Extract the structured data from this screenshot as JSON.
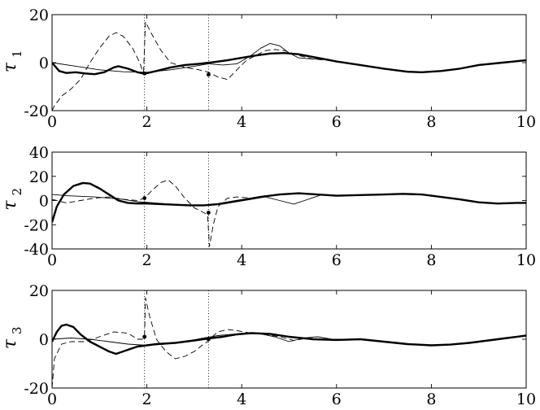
{
  "chart_data": [
    {
      "type": "line",
      "ylabel": "τ",
      "ylabel_sub": "1",
      "xlim": [
        0,
        10
      ],
      "ylim": [
        -20,
        20
      ],
      "xticks": [
        0,
        2,
        4,
        6,
        8,
        10
      ],
      "yticks": [
        -20,
        0,
        20
      ],
      "vlines": [
        1.95,
        3.3
      ],
      "grid": false,
      "markers": [
        {
          "x": 1.95,
          "y": -4.5
        },
        {
          "x": 3.3,
          "y": -5
        }
      ],
      "series": [
        {
          "style": "thick",
          "x": [
            0,
            0.15,
            0.3,
            0.5,
            0.7,
            0.9,
            1.1,
            1.3,
            1.4,
            1.6,
            1.8,
            1.95,
            2.2,
            2.5,
            2.8,
            3.1,
            3.4,
            3.7,
            4.0,
            4.3,
            4.6,
            4.9,
            5.2,
            5.6,
            6.0,
            6.5,
            7.0,
            7.5,
            7.8,
            8.2,
            8.6,
            9.0,
            9.5,
            10.0
          ],
          "y": [
            0,
            -3.5,
            -4.3,
            -4,
            -4.5,
            -4.8,
            -4,
            -2,
            -1.5,
            -2.5,
            -4,
            -4.6,
            -3.5,
            -2,
            -1,
            -0.5,
            0.2,
            1,
            2,
            3,
            3.8,
            4,
            3.5,
            2,
            0.5,
            -1,
            -2.5,
            -3.8,
            -4,
            -3.5,
            -2.5,
            -1,
            0,
            1
          ]
        },
        {
          "style": "thin",
          "x": [
            0,
            0.5,
            1.0,
            1.5,
            2.0,
            2.5,
            3.0,
            3.3,
            3.6,
            3.9,
            4.2,
            4.4,
            4.6,
            4.8,
            5.0,
            5.2,
            5.5,
            5.8,
            6.0,
            6.5,
            7.0,
            7.5,
            7.8,
            8.2,
            8.6,
            9.0,
            9.5,
            10.0
          ],
          "y": [
            0,
            -1.5,
            -3,
            -3.8,
            -4,
            -3,
            -1.5,
            -0.5,
            -1,
            -0.5,
            3,
            6,
            8,
            7,
            4,
            2,
            1.5,
            1.5,
            0.5,
            -1,
            -2.5,
            -3.8,
            -4,
            -3.5,
            -2.5,
            -1,
            0,
            1
          ]
        },
        {
          "style": "dashed",
          "x": [
            0,
            0.05,
            0.2,
            0.4,
            0.6,
            0.8,
            1.0,
            1.2,
            1.35,
            1.5,
            1.7,
            1.85,
            1.9,
            1.93,
            1.97,
            2.1,
            2.3,
            2.5,
            2.8,
            3.1,
            3.3,
            3.5,
            3.7,
            3.9,
            4.1,
            4.3,
            4.5,
            4.7,
            4.9,
            5.2,
            5.5,
            5.8,
            6.0,
            6.5,
            7.0,
            7.5,
            7.8,
            8.2,
            8.6,
            9.0,
            9.5,
            10.0
          ],
          "y": [
            -20,
            -18,
            -14,
            -11,
            -7,
            0,
            6,
            11,
            12.5,
            11,
            6,
            0,
            -3,
            -4,
            17,
            12,
            5,
            0,
            -2,
            -3,
            -4,
            -6,
            -7,
            -3,
            1,
            3,
            5,
            5.5,
            5,
            3,
            1.5,
            1,
            0.5,
            -1,
            -2.5,
            -3.8,
            -4,
            -3.5,
            -2.5,
            -1,
            0,
            1
          ]
        }
      ]
    },
    {
      "type": "line",
      "ylabel": "τ",
      "ylabel_sub": "2",
      "xlim": [
        0,
        10
      ],
      "ylim": [
        -40,
        40
      ],
      "xticks": [
        0,
        2,
        4,
        6,
        8,
        10
      ],
      "yticks": [
        -40,
        -20,
        0,
        20,
        40
      ],
      "vlines": [
        1.95,
        3.3
      ],
      "grid": false,
      "markers": [
        {
          "x": 1.95,
          "y": 2
        },
        {
          "x": 3.3,
          "y": -10
        }
      ],
      "series": [
        {
          "style": "thick",
          "x": [
            0,
            0.1,
            0.25,
            0.45,
            0.65,
            0.8,
            1.0,
            1.2,
            1.4,
            1.6,
            1.8,
            2.0,
            2.3,
            2.6,
            2.9,
            3.2,
            3.5,
            3.8,
            4.1,
            4.4,
            4.8,
            5.2,
            5.6,
            6.0,
            6.5,
            7.0,
            7.4,
            7.8,
            8.2,
            8.6,
            9.0,
            9.4,
            9.8,
            10.0
          ],
          "y": [
            -18,
            -5,
            5,
            12,
            14.5,
            14,
            10,
            5,
            0,
            -2,
            -2.5,
            -2.5,
            -3,
            -3.5,
            -4,
            -4,
            -3,
            -1,
            1,
            3,
            5,
            6,
            5,
            4,
            4.5,
            5,
            5.5,
            5,
            3,
            1,
            -1.5,
            -2.5,
            -2,
            -2
          ]
        },
        {
          "style": "thin",
          "x": [
            0,
            0.3,
            0.6,
            0.9,
            1.2,
            1.5,
            1.8,
            2.0,
            2.5,
            3.0,
            3.3,
            3.6,
            3.9,
            4.2,
            4.5,
            4.8,
            5.1,
            5.4,
            5.7,
            6.0,
            6.5,
            7.0,
            7.4,
            7.8,
            8.2,
            8.6,
            9.0,
            9.4,
            9.8,
            10.0
          ],
          "y": [
            5,
            4,
            3.5,
            3,
            2,
            1,
            -1,
            -1.5,
            -3,
            -4,
            -4,
            -3,
            -1,
            1,
            3,
            0,
            -3,
            1,
            5,
            4,
            4.5,
            5,
            5.5,
            5,
            3,
            1,
            -1.5,
            -2.5,
            -2,
            -2
          ]
        },
        {
          "style": "dashed",
          "x": [
            0,
            0.3,
            0.6,
            0.9,
            1.2,
            1.5,
            1.8,
            1.95,
            2.1,
            2.3,
            2.45,
            2.6,
            2.8,
            3.0,
            3.2,
            3.28,
            3.32,
            3.4,
            3.5,
            3.7,
            3.9,
            4.2,
            4.5,
            4.8,
            5.2,
            5.6,
            6.0,
            6.5,
            7.0,
            7.4,
            7.8,
            8.2,
            8.6,
            9.0,
            9.4,
            9.8,
            10.0
          ],
          "y": [
            1,
            -2,
            0,
            2,
            3,
            1,
            0,
            2,
            8,
            15,
            17,
            12,
            2,
            -6,
            -10,
            -12,
            -38,
            -20,
            -5,
            2,
            3,
            2,
            4,
            5,
            5.5,
            5,
            4,
            4.5,
            5,
            5.5,
            5,
            3,
            1,
            -1.5,
            -2.5,
            -2,
            -2
          ]
        }
      ]
    },
    {
      "type": "line",
      "ylabel": "τ",
      "ylabel_sub": "3",
      "xlim": [
        0,
        10
      ],
      "ylim": [
        -20,
        20
      ],
      "xticks": [
        0,
        2,
        4,
        6,
        8,
        10
      ],
      "yticks": [
        -20,
        0,
        20
      ],
      "vlines": [
        1.95,
        3.3
      ],
      "grid": false,
      "markers": [
        {
          "x": 1.95,
          "y": 1
        },
        {
          "x": 3.3,
          "y": 0
        }
      ],
      "series": [
        {
          "style": "thick",
          "x": [
            0,
            0.1,
            0.2,
            0.3,
            0.45,
            0.6,
            0.8,
            1.0,
            1.2,
            1.35,
            1.5,
            1.8,
            2.2,
            2.6,
            3.0,
            3.3,
            3.6,
            3.9,
            4.2,
            4.6,
            5.0,
            5.5,
            6.0,
            6.5,
            7.0,
            7.5,
            8.0,
            8.4,
            8.8,
            9.2,
            9.6,
            10.0
          ],
          "y": [
            -1,
            3,
            5.5,
            6,
            5,
            2,
            -1,
            -3,
            -5,
            -6,
            -5,
            -3,
            -2,
            -1.5,
            -0.5,
            0.3,
            1,
            2,
            2.5,
            2.2,
            1,
            0,
            -0.3,
            0,
            -1,
            -2,
            -2.5,
            -2.2,
            -1.5,
            -0.5,
            0.5,
            1.5
          ]
        },
        {
          "style": "thin",
          "x": [
            0,
            0.4,
            0.8,
            1.2,
            1.6,
            2.0,
            2.4,
            2.8,
            3.2,
            3.5,
            3.8,
            4.1,
            4.4,
            4.7,
            5.0,
            5.3,
            5.6,
            5.9,
            6.2,
            6.5,
            7.0,
            7.5,
            8.0,
            8.4,
            8.8,
            9.2,
            9.6,
            10.0
          ],
          "y": [
            0,
            0.5,
            0,
            -1,
            -2,
            -2.5,
            -2,
            -1,
            0.5,
            1.5,
            2,
            2.5,
            2.2,
            1,
            -1,
            0.5,
            1,
            0,
            0,
            0,
            -1,
            -2,
            -2.5,
            -2.2,
            -1.5,
            -0.5,
            0.5,
            1.5
          ]
        },
        {
          "style": "dashed",
          "x": [
            0,
            0.05,
            0.2,
            0.4,
            0.7,
            1.0,
            1.3,
            1.6,
            1.8,
            1.9,
            1.95,
            1.97,
            2.05,
            2.2,
            2.4,
            2.6,
            2.8,
            3.0,
            3.2,
            3.28,
            3.32,
            3.5,
            3.7,
            3.9,
            4.2,
            4.5,
            4.8,
            5.1,
            5.4,
            5.7,
            6.0,
            6.5,
            7.0,
            7.5,
            8.0,
            8.4,
            8.8,
            9.2,
            9.6,
            10.0
          ],
          "y": [
            -20,
            -8,
            -2,
            -1,
            -1,
            1,
            3,
            2.5,
            0,
            0,
            1,
            17,
            10,
            0,
            -5,
            -8,
            -7,
            -5,
            -2,
            -1,
            0,
            3,
            4,
            3.5,
            2.5,
            2,
            1,
            -0.5,
            0.5,
            0,
            0,
            0,
            -1,
            -2,
            -2.5,
            -2.2,
            -1.5,
            -0.5,
            0.5,
            1.5
          ]
        }
      ]
    }
  ]
}
